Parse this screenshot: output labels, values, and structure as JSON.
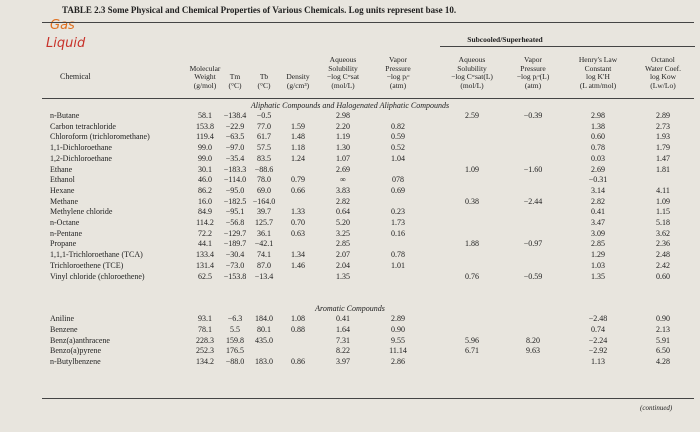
{
  "title": "TABLE 2.3 Some Physical and Chemical Properties of Various Chemicals. Log units represent base 10.",
  "annotations": [
    "Gas",
    "Liquid"
  ],
  "header": {
    "chemical": "Chemical",
    "group": "Subcooled/Superheated",
    "columns": [
      [
        "Molecular",
        "Weight",
        "(g/mol)"
      ],
      [
        "Tm",
        "(°C)"
      ],
      [
        "Tb",
        "(°C)"
      ],
      [
        "Density",
        "(g/cm³)"
      ],
      [
        "Aqueous",
        "Solubility",
        "−log Cʷsat",
        "(mol/L)"
      ],
      [
        "Vapor",
        "Pressure",
        "−log pᵢᵒ",
        "(atm)"
      ],
      [
        "Aqueous",
        "Solubility",
        "−log Cʷsat(L)",
        "(mol/L)"
      ],
      [
        "Vapor",
        "Pressure",
        "−log pᵢᵒ(L)",
        "(atm)"
      ],
      [
        "Henry's Law",
        "Constant",
        "log K′H",
        "(L atm/mol)"
      ],
      [
        "Octanol",
        "Water Coef.",
        "log Kow",
        "(Lw/Lo)"
      ]
    ]
  },
  "sections": [
    {
      "heading": "Aliphatic Compounds and Halogenated Aliphatic Compounds",
      "rows": [
        [
          "n-Butane",
          "58.1",
          "−138.4",
          "−0.5",
          null,
          "2.98",
          null,
          "2.59",
          "−0.39",
          "2.98",
          "2.89"
        ],
        [
          "Carbon tetrachloride",
          "153.8",
          "−22.9",
          "77.0",
          "1.59",
          "2.20",
          "0.82",
          null,
          null,
          "1.38",
          "2.73"
        ],
        [
          "Chloroform (trichloromethane)",
          "119.4",
          "−63.5",
          "61.7",
          "1.48",
          "1.19",
          "0.59",
          null,
          null,
          "0.60",
          "1.93"
        ],
        [
          "1,1-Dichloroethane",
          "99.0",
          "−97.0",
          "57.5",
          "1.18",
          "1.30",
          "0.52",
          null,
          null,
          "0.78",
          "1.79"
        ],
        [
          "1,2-Dichloroethane",
          "99.0",
          "−35.4",
          "83.5",
          "1.24",
          "1.07",
          "1.04",
          null,
          null,
          "0.03",
          "1.47"
        ],
        [
          "Ethane",
          "30.1",
          "−183.3",
          "−88.6",
          null,
          "2.69",
          null,
          "1.09",
          "−1.60",
          "2.69",
          "1.81"
        ],
        [
          "Ethanol",
          "46.0",
          "−114.0",
          "78.0",
          "0.79",
          "∞",
          "078",
          null,
          null,
          "−0.31",
          null
        ],
        [
          "Hexane",
          "86.2",
          "−95.0",
          "69.0",
          "0.66",
          "3.83",
          "0.69",
          null,
          null,
          "3.14",
          "4.11"
        ],
        [
          "Methane",
          "16.0",
          "−182.5",
          "−164.0",
          null,
          "2.82",
          null,
          "0.38",
          "−2.44",
          "2.82",
          "1.09"
        ],
        [
          "Methylene chloride",
          "84.9",
          "−95.1",
          "39.7",
          "1.33",
          "0.64",
          "0.23",
          null,
          null,
          "0.41",
          "1.15"
        ],
        [
          "n-Octane",
          "114.2",
          "−56.8",
          "125.7",
          "0.70",
          "5.20",
          "1.73",
          null,
          null,
          "3.47",
          "5.18"
        ],
        [
          "n-Pentane",
          "72.2",
          "−129.7",
          "36.1",
          "0.63",
          "3.25",
          "0.16",
          null,
          null,
          "3.09",
          "3.62"
        ],
        [
          "Propane",
          "44.1",
          "−189.7",
          "−42.1",
          null,
          "2.85",
          null,
          "1.88",
          "−0.97",
          "2.85",
          "2.36"
        ],
        [
          "1,1,1-Trichloroethane (TCA)",
          "133.4",
          "−30.4",
          "74.1",
          "1.34",
          "2.07",
          "0.78",
          null,
          null,
          "1.29",
          "2.48"
        ],
        [
          "Trichloroethene (TCE)",
          "131.4",
          "−73.0",
          "87.0",
          "1.46",
          "2.04",
          "1.01",
          null,
          null,
          "1.03",
          "2.42"
        ],
        [
          "Vinyl chloride (chloroethene)",
          "62.5",
          "−153.8",
          "−13.4",
          null,
          "1.35",
          null,
          "0.76",
          "−0.59",
          "1.35",
          "0.60"
        ]
      ]
    },
    {
      "heading": "Aromatic Compounds",
      "rows": [
        [
          "Aniline",
          "93.1",
          "−6.3",
          "184.0",
          "1.08",
          "0.41",
          "2.89",
          null,
          null,
          "−2.48",
          "0.90"
        ],
        [
          "Benzene",
          "78.1",
          "5.5",
          "80.1",
          "0.88",
          "1.64",
          "0.90",
          null,
          null,
          "0.74",
          "2.13"
        ],
        [
          "Benz(a)anthracene",
          "228.3",
          "159.8",
          "435.0",
          null,
          "7.31",
          "9.55",
          "5.96",
          "8.20",
          "−2.24",
          "5.91"
        ],
        [
          "Benzo(a)pyrene",
          "252.3",
          "176.5",
          null,
          null,
          "8.22",
          "11.14",
          "6.71",
          "9.63",
          "−2.92",
          "6.50"
        ],
        [
          "n-Butylbenzene",
          "134.2",
          "−88.0",
          "183.0",
          "0.86",
          "3.97",
          "2.86",
          null,
          null,
          "1.13",
          "4.28"
        ]
      ]
    }
  ],
  "footer": "(continued)"
}
